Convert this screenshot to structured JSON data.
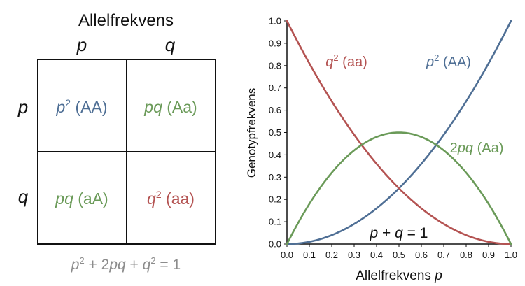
{
  "colors": {
    "blue": "#4f6f95",
    "green": "#6a9a58",
    "red": "#b45352",
    "black": "#111111",
    "gray": "#8c8c8c"
  },
  "punnett": {
    "title": "Allelfrekvens",
    "col_labels": [
      "p",
      "q"
    ],
    "row_labels": [
      "p",
      "q"
    ],
    "cells": [
      [
        {
          "sym": "p",
          "exp": "2",
          "geno": " (AA)",
          "color": "blue"
        },
        {
          "sym": "pq",
          "exp": "",
          "geno": " (Aa)",
          "color": "green"
        }
      ],
      [
        {
          "sym": "pq",
          "exp": "",
          "geno": " (aA)",
          "color": "green"
        },
        {
          "sym": "q",
          "exp": "2",
          "geno": " (aa)",
          "color": "red"
        }
      ]
    ],
    "equation": {
      "p": "p",
      "two": " + 2",
      "pq": "pq",
      "plus": " + ",
      "q": "q",
      "eq": " = 1",
      "exp": "2"
    }
  },
  "chart_data": {
    "type": "line",
    "xlabel_prefix": "Allelfrekvens ",
    "xlabel_var": "p",
    "ylabel": "Genotypfrekvens",
    "xlim": [
      0.0,
      1.0
    ],
    "ylim": [
      0.0,
      1.0
    ],
    "x_ticks": [
      "0.0",
      "0.1",
      "0.2",
      "0.3",
      "0.4",
      "0.5",
      "0.6",
      "0.7",
      "0.8",
      "0.9",
      "1.0"
    ],
    "y_ticks": [
      "0.0",
      "0.1",
      "0.2",
      "0.3",
      "0.4",
      "0.5",
      "0.6",
      "0.7",
      "0.8",
      "0.9",
      "1.0"
    ],
    "grid": false,
    "x": [
      0.0,
      0.1,
      0.2,
      0.3,
      0.4,
      0.5,
      0.6,
      0.7,
      0.8,
      0.9,
      1.0
    ],
    "series": [
      {
        "name_sym": "p",
        "name_exp": "2",
        "name_geno": " (AA)",
        "color": "blue",
        "values": [
          0.0,
          0.01,
          0.04,
          0.09,
          0.16,
          0.25,
          0.36,
          0.49,
          0.64,
          0.81,
          1.0
        ]
      },
      {
        "name_sym": "q",
        "name_exp": "2",
        "name_geno": " (aa)",
        "color": "red",
        "values": [
          1.0,
          0.81,
          0.64,
          0.49,
          0.36,
          0.25,
          0.16,
          0.09,
          0.04,
          0.01,
          0.0
        ]
      },
      {
        "name_pre": "2",
        "name_sym": "pq",
        "name_exp": "",
        "name_geno": " (Aa)",
        "color": "green",
        "values": [
          0.0,
          0.18,
          0.32,
          0.42,
          0.48,
          0.5,
          0.48,
          0.42,
          0.32,
          0.18,
          0.0
        ]
      }
    ],
    "annotation": {
      "p": "p",
      "plus": " + ",
      "q": "q",
      "eq": " = 1"
    }
  }
}
